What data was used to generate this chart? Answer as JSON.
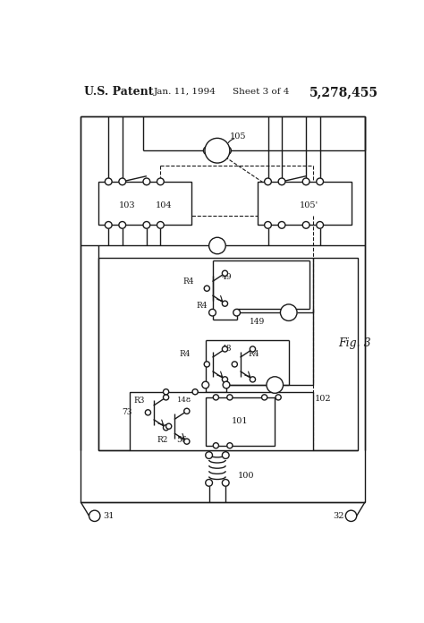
{
  "bg_color": "#ffffff",
  "line_color": "#1a1a1a",
  "title_text": "U.S. Patent",
  "date_text": "Jan. 11, 1994",
  "sheet_text": "Sheet 3 of 4",
  "patent_num": "5,278,455",
  "fig_label": "Fig. 3"
}
